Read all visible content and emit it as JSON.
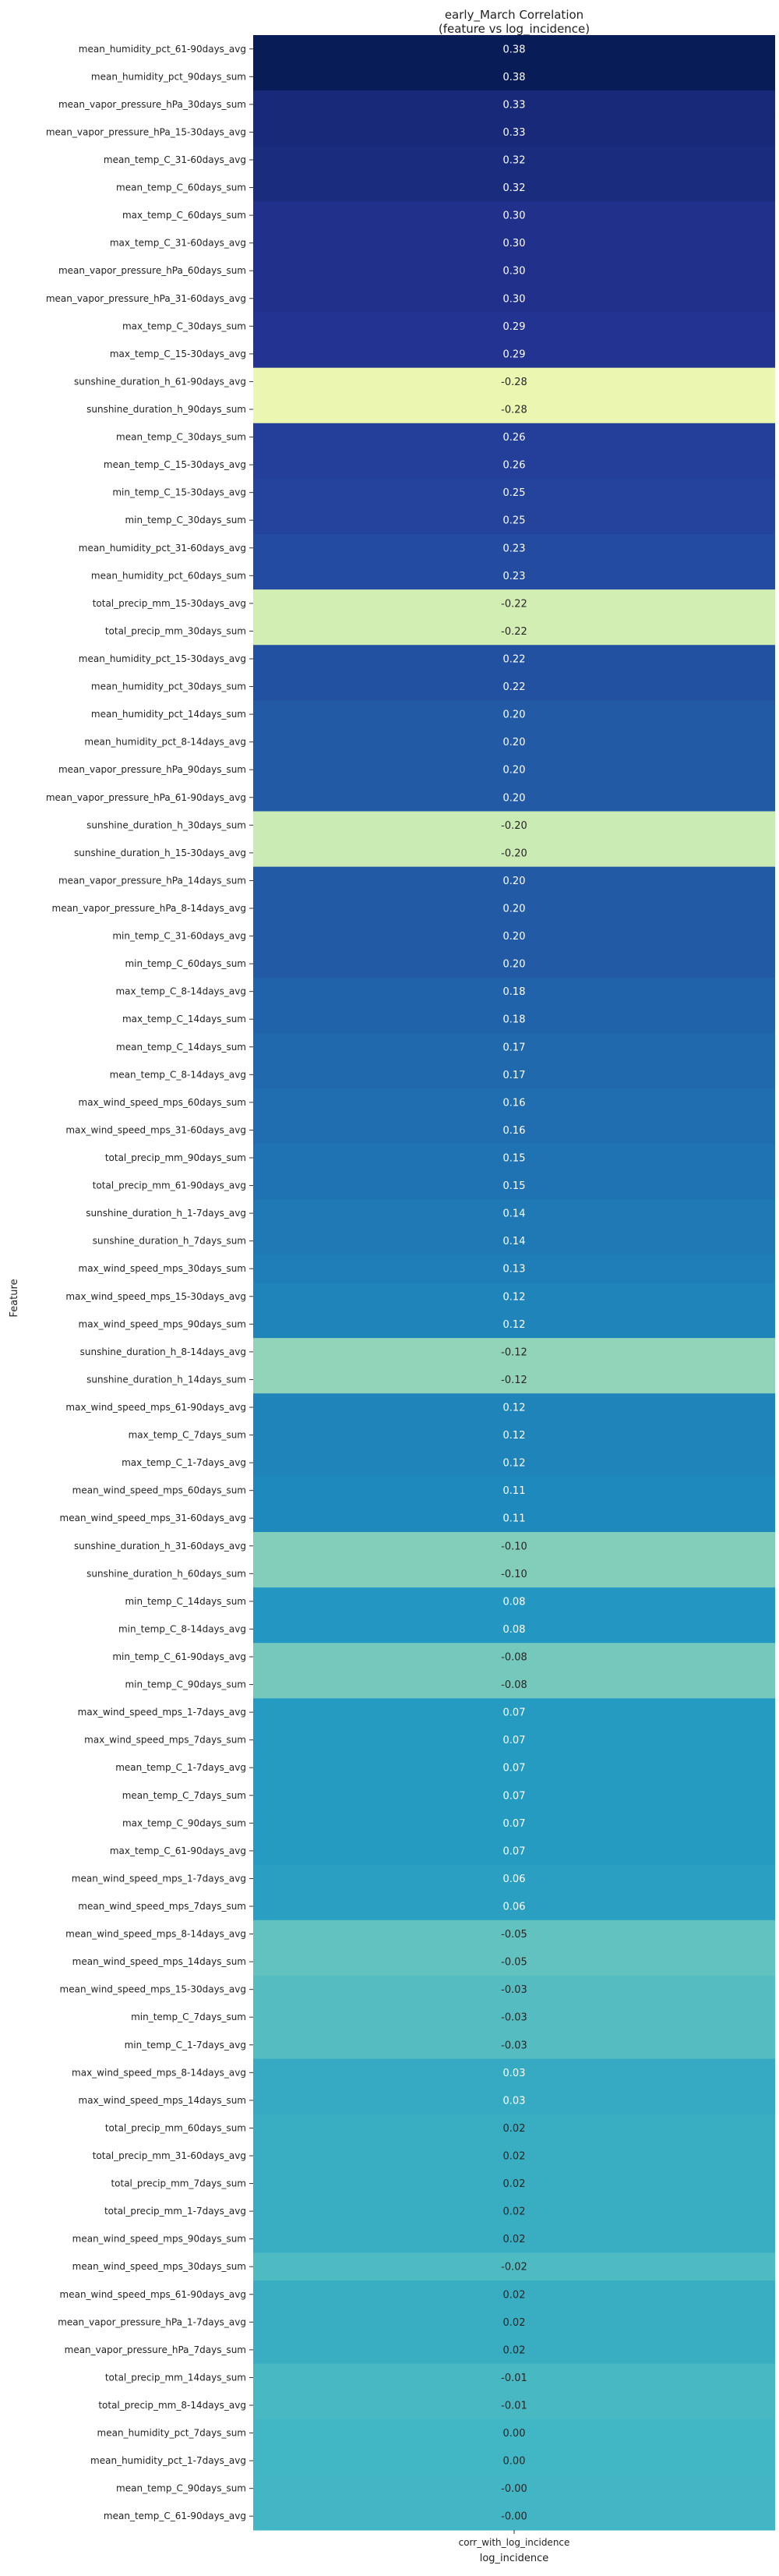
{
  "chart_data": {
    "type": "heatmap",
    "title": "early_March Correlation\n(feature vs log_incidence)",
    "xlabel": "log_incidence",
    "ylabel": "Feature",
    "x_tick_labels": [
      "corr_with_log_incidence"
    ],
    "colormap": "YlGnBu",
    "color_range": [
      -0.38,
      0.38
    ],
    "value_format": "%.2f",
    "rows": [
      {
        "feature": "mean_humidity_pct_61-90days_avg",
        "value": 0.38
      },
      {
        "feature": "mean_humidity_pct_90days_sum",
        "value": 0.38
      },
      {
        "feature": "mean_vapor_pressure_hPa_30days_sum",
        "value": 0.33
      },
      {
        "feature": "mean_vapor_pressure_hPa_15-30days_avg",
        "value": 0.33
      },
      {
        "feature": "mean_temp_C_31-60days_avg",
        "value": 0.32
      },
      {
        "feature": "mean_temp_C_60days_sum",
        "value": 0.32
      },
      {
        "feature": "max_temp_C_60days_sum",
        "value": 0.3
      },
      {
        "feature": "max_temp_C_31-60days_avg",
        "value": 0.3
      },
      {
        "feature": "mean_vapor_pressure_hPa_60days_sum",
        "value": 0.3
      },
      {
        "feature": "mean_vapor_pressure_hPa_31-60days_avg",
        "value": 0.3
      },
      {
        "feature": "max_temp_C_30days_sum",
        "value": 0.29
      },
      {
        "feature": "max_temp_C_15-30days_avg",
        "value": 0.29
      },
      {
        "feature": "sunshine_duration_h_61-90days_avg",
        "value": -0.28
      },
      {
        "feature": "sunshine_duration_h_90days_sum",
        "value": -0.28
      },
      {
        "feature": "mean_temp_C_30days_sum",
        "value": 0.26
      },
      {
        "feature": "mean_temp_C_15-30days_avg",
        "value": 0.26
      },
      {
        "feature": "min_temp_C_15-30days_avg",
        "value": 0.25
      },
      {
        "feature": "min_temp_C_30days_sum",
        "value": 0.25
      },
      {
        "feature": "mean_humidity_pct_31-60days_avg",
        "value": 0.23
      },
      {
        "feature": "mean_humidity_pct_60days_sum",
        "value": 0.23
      },
      {
        "feature": "total_precip_mm_15-30days_avg",
        "value": -0.22
      },
      {
        "feature": "total_precip_mm_30days_sum",
        "value": -0.22
      },
      {
        "feature": "mean_humidity_pct_15-30days_avg",
        "value": 0.22
      },
      {
        "feature": "mean_humidity_pct_30days_sum",
        "value": 0.22
      },
      {
        "feature": "mean_humidity_pct_14days_sum",
        "value": 0.2
      },
      {
        "feature": "mean_humidity_pct_8-14days_avg",
        "value": 0.2
      },
      {
        "feature": "mean_vapor_pressure_hPa_90days_sum",
        "value": 0.2
      },
      {
        "feature": "mean_vapor_pressure_hPa_61-90days_avg",
        "value": 0.2
      },
      {
        "feature": "sunshine_duration_h_30days_sum",
        "value": -0.2
      },
      {
        "feature": "sunshine_duration_h_15-30days_avg",
        "value": -0.2
      },
      {
        "feature": "mean_vapor_pressure_hPa_14days_sum",
        "value": 0.2
      },
      {
        "feature": "mean_vapor_pressure_hPa_8-14days_avg",
        "value": 0.2
      },
      {
        "feature": "min_temp_C_31-60days_avg",
        "value": 0.2
      },
      {
        "feature": "min_temp_C_60days_sum",
        "value": 0.2
      },
      {
        "feature": "max_temp_C_8-14days_avg",
        "value": 0.18
      },
      {
        "feature": "max_temp_C_14days_sum",
        "value": 0.18
      },
      {
        "feature": "mean_temp_C_14days_sum",
        "value": 0.17
      },
      {
        "feature": "mean_temp_C_8-14days_avg",
        "value": 0.17
      },
      {
        "feature": "max_wind_speed_mps_60days_sum",
        "value": 0.16
      },
      {
        "feature": "max_wind_speed_mps_31-60days_avg",
        "value": 0.16
      },
      {
        "feature": "total_precip_mm_90days_sum",
        "value": 0.15
      },
      {
        "feature": "total_precip_mm_61-90days_avg",
        "value": 0.15
      },
      {
        "feature": "sunshine_duration_h_1-7days_avg",
        "value": 0.14
      },
      {
        "feature": "sunshine_duration_h_7days_sum",
        "value": 0.14
      },
      {
        "feature": "max_wind_speed_mps_30days_sum",
        "value": 0.13
      },
      {
        "feature": "max_wind_speed_mps_15-30days_avg",
        "value": 0.12
      },
      {
        "feature": "max_wind_speed_mps_90days_sum",
        "value": 0.12
      },
      {
        "feature": "sunshine_duration_h_8-14days_avg",
        "value": -0.12
      },
      {
        "feature": "sunshine_duration_h_14days_sum",
        "value": -0.12
      },
      {
        "feature": "max_wind_speed_mps_61-90days_avg",
        "value": 0.12
      },
      {
        "feature": "max_temp_C_7days_sum",
        "value": 0.12
      },
      {
        "feature": "max_temp_C_1-7days_avg",
        "value": 0.12
      },
      {
        "feature": "mean_wind_speed_mps_60days_sum",
        "value": 0.11
      },
      {
        "feature": "mean_wind_speed_mps_31-60days_avg",
        "value": 0.11
      },
      {
        "feature": "sunshine_duration_h_31-60days_avg",
        "value": -0.1
      },
      {
        "feature": "sunshine_duration_h_60days_sum",
        "value": -0.1
      },
      {
        "feature": "min_temp_C_14days_sum",
        "value": 0.08
      },
      {
        "feature": "min_temp_C_8-14days_avg",
        "value": 0.08
      },
      {
        "feature": "min_temp_C_61-90days_avg",
        "value": -0.08
      },
      {
        "feature": "min_temp_C_90days_sum",
        "value": -0.08
      },
      {
        "feature": "max_wind_speed_mps_1-7days_avg",
        "value": 0.07
      },
      {
        "feature": "max_wind_speed_mps_7days_sum",
        "value": 0.07
      },
      {
        "feature": "mean_temp_C_1-7days_avg",
        "value": 0.07
      },
      {
        "feature": "mean_temp_C_7days_sum",
        "value": 0.07
      },
      {
        "feature": "max_temp_C_90days_sum",
        "value": 0.07
      },
      {
        "feature": "max_temp_C_61-90days_avg",
        "value": 0.07
      },
      {
        "feature": "mean_wind_speed_mps_1-7days_avg",
        "value": 0.06
      },
      {
        "feature": "mean_wind_speed_mps_7days_sum",
        "value": 0.06
      },
      {
        "feature": "mean_wind_speed_mps_8-14days_avg",
        "value": -0.05
      },
      {
        "feature": "mean_wind_speed_mps_14days_sum",
        "value": -0.05
      },
      {
        "feature": "mean_wind_speed_mps_15-30days_avg",
        "value": -0.03
      },
      {
        "feature": "min_temp_C_7days_sum",
        "value": -0.03
      },
      {
        "feature": "min_temp_C_1-7days_avg",
        "value": -0.03
      },
      {
        "feature": "max_wind_speed_mps_8-14days_avg",
        "value": 0.03
      },
      {
        "feature": "max_wind_speed_mps_14days_sum",
        "value": 0.03
      },
      {
        "feature": "total_precip_mm_60days_sum",
        "value": 0.02
      },
      {
        "feature": "total_precip_mm_31-60days_avg",
        "value": 0.02
      },
      {
        "feature": "total_precip_mm_7days_sum",
        "value": 0.02
      },
      {
        "feature": "total_precip_mm_1-7days_avg",
        "value": 0.02
      },
      {
        "feature": "mean_wind_speed_mps_90days_sum",
        "value": 0.02
      },
      {
        "feature": "mean_wind_speed_mps_30days_sum",
        "value": -0.02
      },
      {
        "feature": "mean_wind_speed_mps_61-90days_avg",
        "value": 0.02
      },
      {
        "feature": "mean_vapor_pressure_hPa_1-7days_avg",
        "value": 0.02
      },
      {
        "feature": "mean_vapor_pressure_hPa_7days_sum",
        "value": 0.02
      },
      {
        "feature": "total_precip_mm_14days_sum",
        "value": -0.01
      },
      {
        "feature": "total_precip_mm_8-14days_avg",
        "value": -0.01
      },
      {
        "feature": "mean_humidity_pct_7days_sum",
        "value": 0.0
      },
      {
        "feature": "mean_humidity_pct_1-7days_avg",
        "value": 0.0
      },
      {
        "feature": "mean_temp_C_90days_sum",
        "value": -0.001
      },
      {
        "feature": "mean_temp_C_61-90days_avg",
        "value": -0.001
      }
    ]
  }
}
